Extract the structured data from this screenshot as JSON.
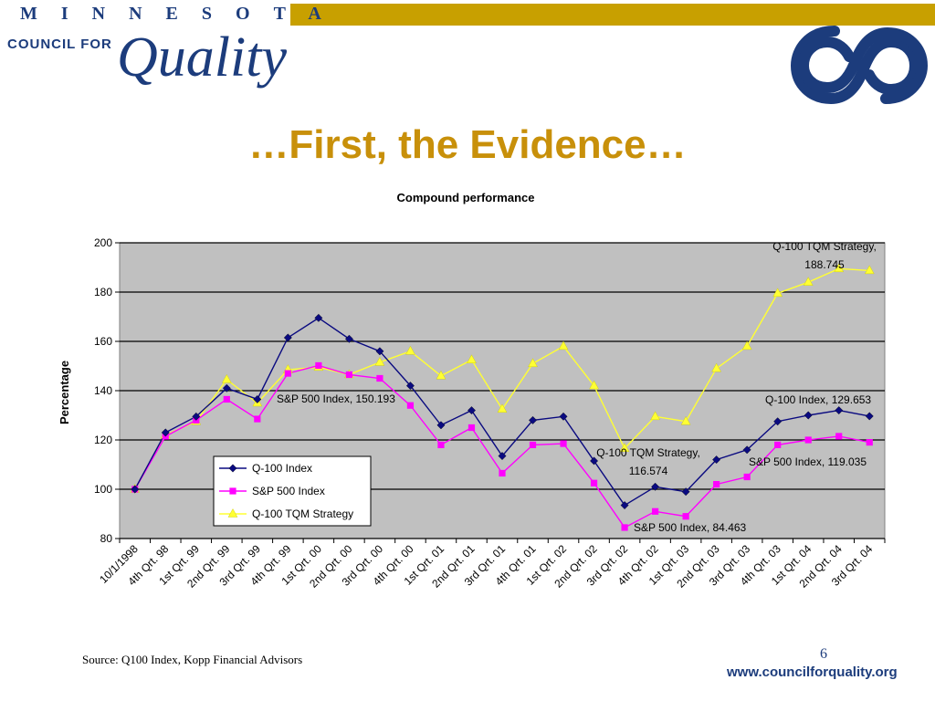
{
  "header": {
    "state_letters": "MINNESOTA",
    "org_line": "COUNCIL FOR",
    "org_word": "Quality",
    "accent_color": "#c8a000",
    "brand_color": "#1c3c7c"
  },
  "slide": {
    "title": "…First, the Evidence…",
    "source": "Source: Q100 Index, Kopp Financial Advisors",
    "page_number": "6",
    "website": "www.councilforquality.org"
  },
  "chart_data": {
    "type": "line",
    "title": "Compound performance",
    "xlabel": "",
    "ylabel": "Percentage",
    "ylim": [
      80,
      200
    ],
    "yticks": [
      80,
      100,
      120,
      140,
      160,
      180,
      200
    ],
    "grid": true,
    "legend_position": "inside-bottom-left",
    "plot_background": "#c0c0c0",
    "categories": [
      "10/1/1998",
      "4th Qrt. 98",
      "1st Qrt. 99",
      "2nd Qrt. 99",
      "3rd Qrt. 99",
      "4th Qrt. 99",
      "1st Qrt. 00",
      "2nd Qrt. 00",
      "3rd Qrt. 00",
      "4th Qrt. 00",
      "1st Qrt. 01",
      "2nd Qrt. 01",
      "3rd Qrt. 01",
      "4th Qrt. 01",
      "1st Qrt. 02",
      "2nd Qrt. 02",
      "3rd Qrt. 02",
      "4th Qrt. 02",
      "1st Qrt. 03",
      "2nd Qrt. 03",
      "3rd Qrt. 03",
      "4th Qrt. 03",
      "1st Qrt. 04",
      "2nd Qrt. 04",
      "3rd Qrt. 04"
    ],
    "series": [
      {
        "name": "Q-100 Index",
        "color": "#0a0a80",
        "marker": "diamond",
        "values": [
          100,
          123,
          129.5,
          141,
          136.5,
          161.5,
          169.5,
          161,
          156,
          142,
          126,
          132,
          113.5,
          128,
          129.5,
          111.5,
          93.5,
          101,
          99,
          112,
          116,
          127.5,
          130,
          132,
          129.653
        ]
      },
      {
        "name": "S&P 500 Index",
        "color": "#ff00ff",
        "marker": "square",
        "values": [
          100,
          121.5,
          128,
          136.5,
          128.5,
          147,
          150.193,
          146.5,
          145,
          134,
          118,
          125,
          106.5,
          118,
          118.5,
          102.5,
          84.463,
          91,
          89,
          102,
          105,
          118,
          120,
          121.5,
          119.035
        ]
      },
      {
        "name": "Q-100 TQM Strategy",
        "color": "#ffff33",
        "marker": "triangle",
        "values": [
          100,
          122,
          127.5,
          144.5,
          135,
          148.5,
          149.5,
          146.5,
          151.5,
          156,
          146,
          152.5,
          132.5,
          151,
          158,
          142,
          116.574,
          129.5,
          127.5,
          149,
          158,
          179.5,
          184,
          189.5,
          188.745
        ]
      }
    ],
    "annotations": [
      {
        "text1": "Q-100 TQM Strategy,",
        "text2": "188.745"
      },
      {
        "text1": "S&P 500 Index, 150.193",
        "text2": ""
      },
      {
        "text1": "Q-100 Index, 129.653",
        "text2": ""
      },
      {
        "text1": "Q-100 TQM Strategy,",
        "text2": "116.574"
      },
      {
        "text1": "S&P 500 Index, 119.035",
        "text2": ""
      },
      {
        "text1": "S&P 500 Index, 84.463",
        "text2": ""
      }
    ]
  }
}
